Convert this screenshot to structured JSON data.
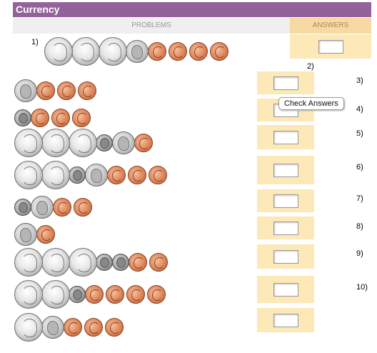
{
  "app": {
    "title": "Currency"
  },
  "headers": {
    "problems": "PROBLEMS",
    "answers": "ANSWERS"
  },
  "tooltip": {
    "text": "Check Answers"
  },
  "problems": [
    {
      "label": "1)",
      "coins": [
        "quarter",
        "quarter",
        "quarter",
        "nickel",
        "penny",
        "penny",
        "penny",
        "penny"
      ],
      "answer": ""
    },
    {
      "label": "2)",
      "coins": [
        "nickel",
        "penny",
        "penny",
        "penny"
      ],
      "answer": ""
    },
    {
      "label": "3)",
      "coins": [
        "dime",
        "penny",
        "penny",
        "penny"
      ],
      "answer": ""
    },
    {
      "label": "4)",
      "coins": [
        "quarter",
        "quarter",
        "quarter",
        "dime",
        "nickel",
        "penny"
      ],
      "answer": ""
    },
    {
      "label": "5)",
      "coins": [
        "quarter",
        "quarter",
        "dime",
        "nickel",
        "penny",
        "penny",
        "penny"
      ],
      "answer": ""
    },
    {
      "label": "6)",
      "coins": [
        "dime",
        "nickel",
        "penny",
        "penny"
      ],
      "answer": ""
    },
    {
      "label": "7)",
      "coins": [
        "nickel",
        "penny"
      ],
      "answer": ""
    },
    {
      "label": "8)",
      "coins": [
        "quarter",
        "quarter",
        "quarter",
        "dime",
        "dime",
        "penny",
        "penny"
      ],
      "answer": ""
    },
    {
      "label": "9)",
      "coins": [
        "quarter",
        "quarter",
        "dime",
        "penny",
        "penny",
        "penny",
        "penny"
      ],
      "answer": ""
    },
    {
      "label": "10)",
      "coins": [
        "quarter",
        "nickel",
        "penny",
        "penny",
        "penny"
      ],
      "answer": ""
    }
  ]
}
